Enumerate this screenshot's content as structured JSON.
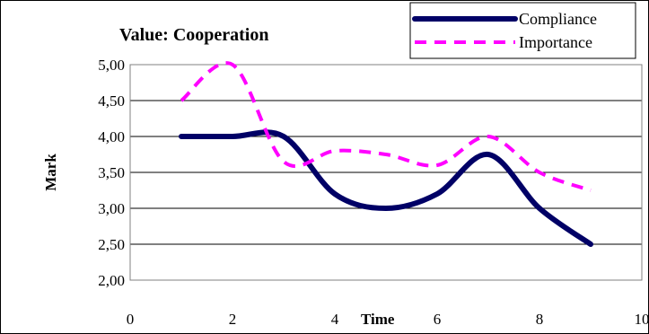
{
  "chart_data": {
    "type": "line",
    "title": "Value: Cooperation",
    "xlabel": "Time",
    "ylabel": "Mark",
    "xlim": [
      0,
      10
    ],
    "ylim": [
      2.0,
      5.0
    ],
    "xticks": [
      0,
      2,
      4,
      6,
      8,
      10
    ],
    "yticks": [
      2.0,
      2.5,
      3.0,
      3.5,
      4.0,
      4.5,
      5.0
    ],
    "ytick_labels": [
      "2,00",
      "2,50",
      "3,00",
      "3,50",
      "4,00",
      "4,50",
      "5,00"
    ],
    "xtick_labels": [
      "0",
      "2",
      "4",
      "6",
      "8",
      "10"
    ],
    "grid": "horizontal",
    "legend_position": "top-right",
    "series": [
      {
        "name": "Compliance",
        "color": "#000066",
        "style": "solid",
        "x": [
          1,
          2,
          3,
          4,
          5,
          6,
          7,
          8,
          9
        ],
        "values": [
          4.0,
          4.0,
          4.0,
          3.2,
          3.0,
          3.2,
          3.75,
          3.0,
          2.5
        ]
      },
      {
        "name": "Importance",
        "color": "#ff00ff",
        "style": "dashed",
        "x": [
          1,
          2,
          3,
          4,
          5,
          6,
          7,
          8,
          9
        ],
        "values": [
          4.5,
          5.0,
          3.65,
          3.8,
          3.75,
          3.6,
          4.0,
          3.5,
          3.25
        ]
      }
    ]
  }
}
